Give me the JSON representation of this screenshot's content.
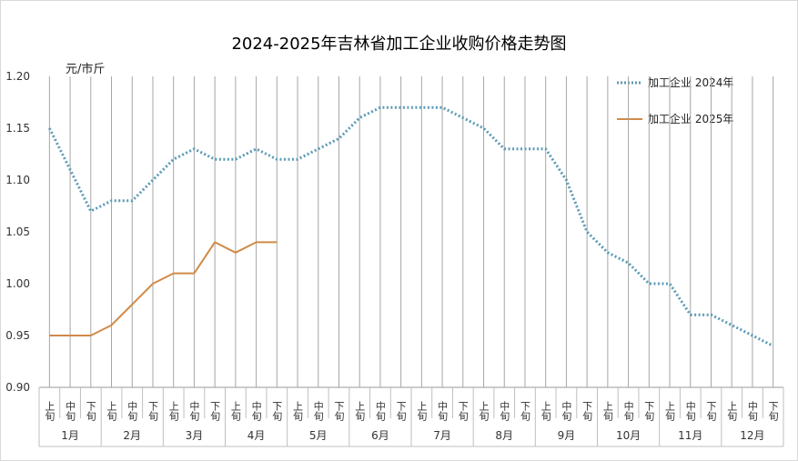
{
  "chart_data": {
    "type": "line",
    "title": "2024-2025年吉林省加工企业收购价格走势图",
    "ylabel": "元/市斤",
    "ylim": [
      0.9,
      1.2
    ],
    "yticks": [
      "0.90",
      "0.95",
      "1.00",
      "1.05",
      "1.10",
      "1.15",
      "1.20"
    ],
    "grid": "vertical",
    "legend_position": "top-right",
    "months": [
      "1月",
      "2月",
      "3月",
      "4月",
      "5月",
      "6月",
      "7月",
      "8月",
      "9月",
      "10月",
      "11月",
      "12月"
    ],
    "periods": [
      "上旬",
      "中旬",
      "下旬"
    ],
    "series": [
      {
        "name": "加工企业 2024年",
        "color": "#5b9bb5",
        "style": "dotted",
        "values": [
          1.15,
          1.11,
          1.07,
          1.08,
          1.08,
          1.1,
          1.12,
          1.13,
          1.12,
          1.12,
          1.13,
          1.12,
          1.12,
          1.13,
          1.14,
          1.16,
          1.17,
          1.17,
          1.17,
          1.17,
          1.16,
          1.15,
          1.13,
          1.13,
          1.13,
          1.1,
          1.05,
          1.03,
          1.02,
          1.0,
          1.0,
          0.97,
          0.97,
          0.96,
          0.95,
          0.94
        ]
      },
      {
        "name": "加工企业 2025年",
        "color": "#d08a48",
        "style": "solid",
        "values": [
          0.95,
          0.95,
          0.95,
          0.96,
          0.98,
          1.0,
          1.01,
          1.01,
          1.04,
          1.03,
          1.04,
          1.04
        ]
      }
    ]
  }
}
